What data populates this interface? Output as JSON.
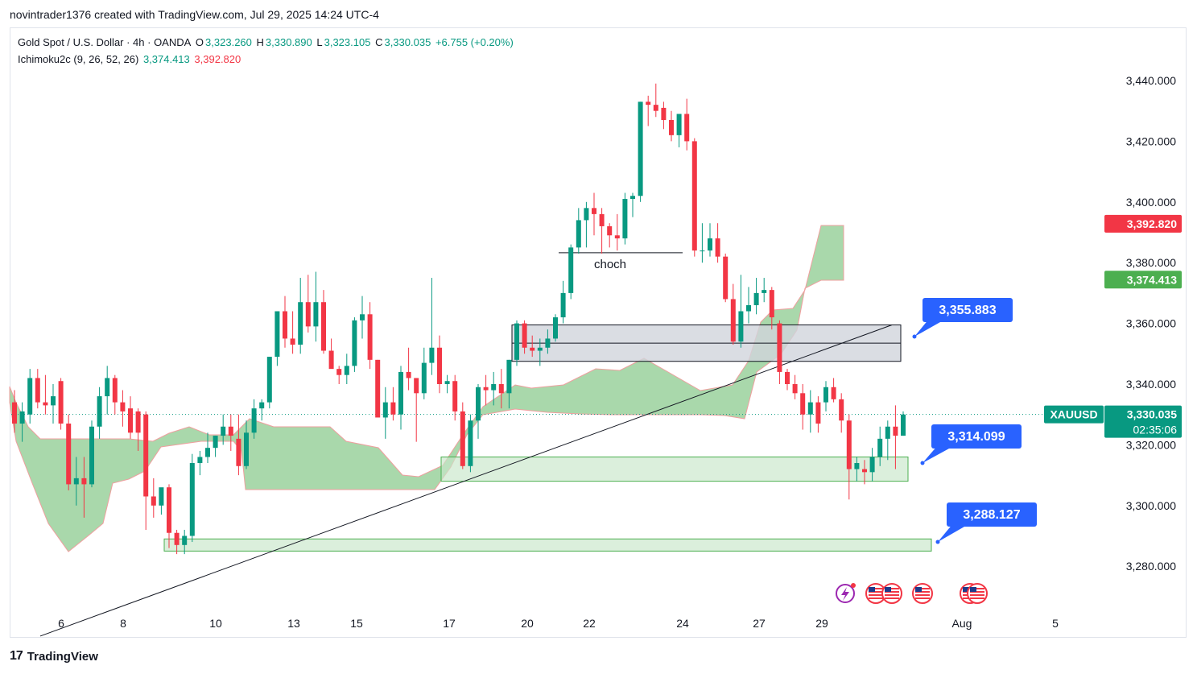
{
  "header": {
    "author_line": "novintrader1376 created with TradingView.com, Jul 29, 2025 14:24 UTC-4"
  },
  "legend": {
    "symbol_desc": "Gold Spot / U.S. Dollar · 4h · OANDA",
    "o_label": "O",
    "o_value": "3,323.260",
    "h_label": "H",
    "h_value": "3,330.890",
    "l_label": "L",
    "l_value": "3,323.105",
    "c_label": "C",
    "c_value": "3,330.035",
    "change": "+6.755 (+0.20%)",
    "indicator_name": "Ichimoku2c (9, 26, 52, 26)",
    "indicator_v1": "3,374.413",
    "indicator_v2": "3,392.820"
  },
  "footer": {
    "brand": "TradingView",
    "logo_glyph": "17"
  },
  "colors": {
    "up": "#089981",
    "down": "#f23645",
    "cloud_fill": "#a5d6a7",
    "cloud_edge": "#ef9a9a",
    "zone_green": "#c8e6c9",
    "zone_gray": "#d1d4dc",
    "callout": "#2962ff",
    "price_tag": "#089981"
  },
  "chart_data": {
    "type": "candlestick",
    "title": "Gold Spot / U.S. Dollar · 4h · OANDA",
    "ylim": [
      3270,
      3450
    ],
    "y_ticks": [
      "3,440.000",
      "3,420.000",
      "3,400.000",
      "3,380.000",
      "3,360.000",
      "3,340.000",
      "3,320.000",
      "3,300.000",
      "3,280.000"
    ],
    "y_tick_values": [
      3440,
      3420,
      3400,
      3380,
      3360,
      3340,
      3320,
      3300,
      3280
    ],
    "x_labels": [
      "6",
      "8",
      "10",
      "13",
      "15",
      "17",
      "20",
      "22",
      "24",
      "27",
      "29",
      "Aug",
      "5"
    ],
    "price_tags": {
      "symbol": "XAUUSD",
      "last": "3,330.035",
      "last_value": 3330.035,
      "countdown": "02:35:06",
      "span_b": "3,392.820",
      "span_b_value": 3392.82,
      "span_a": "3,374.413",
      "span_a_value": 3374.413
    },
    "callouts": [
      {
        "label": "3,355.883",
        "value": 3355.883
      },
      {
        "label": "3,314.099",
        "value": 3314.099
      },
      {
        "label": "3,288.127",
        "value": 3288.127
      }
    ],
    "annotations": [
      {
        "text": "choch",
        "value": 3383
      }
    ],
    "zones": [
      {
        "kind": "supply",
        "top": 3359.5,
        "bottom": 3347.5,
        "mid": 3353.5
      },
      {
        "kind": "demand",
        "top": 3316,
        "bottom": 3308
      },
      {
        "kind": "demand",
        "top": 3289,
        "bottom": 3285
      }
    ],
    "trendline": {
      "from": 3257,
      "to": 3359.5
    },
    "candles": [
      {
        "o": 3334,
        "h": 3338,
        "l": 3324,
        "c": 3327
      },
      {
        "o": 3327,
        "h": 3334,
        "l": 3321,
        "c": 3331
      },
      {
        "o": 3330,
        "h": 3345,
        "l": 3327,
        "c": 3342
      },
      {
        "o": 3342,
        "h": 3345,
        "l": 3332,
        "c": 3334
      },
      {
        "o": 3334,
        "h": 3343,
        "l": 3330,
        "c": 3333
      },
      {
        "o": 3333,
        "h": 3340,
        "l": 3327,
        "c": 3336
      },
      {
        "o": 3341,
        "h": 3342,
        "l": 3325,
        "c": 3327
      },
      {
        "o": 3327,
        "h": 3330,
        "l": 3305,
        "c": 3307
      },
      {
        "o": 3307,
        "h": 3316,
        "l": 3300,
        "c": 3309
      },
      {
        "o": 3309,
        "h": 3316,
        "l": 3296,
        "c": 3307
      },
      {
        "o": 3307,
        "h": 3328,
        "l": 3306,
        "c": 3326
      },
      {
        "o": 3326,
        "h": 3339,
        "l": 3322,
        "c": 3336
      },
      {
        "o": 3336,
        "h": 3346,
        "l": 3330,
        "c": 3342
      },
      {
        "o": 3342,
        "h": 3343,
        "l": 3330,
        "c": 3334
      },
      {
        "o": 3334,
        "h": 3338,
        "l": 3326,
        "c": 3331
      },
      {
        "o": 3332,
        "h": 3336,
        "l": 3322,
        "c": 3324
      },
      {
        "o": 3331,
        "h": 3332,
        "l": 3318,
        "c": 3324
      },
      {
        "o": 3330,
        "h": 3331,
        "l": 3292,
        "c": 3303
      },
      {
        "o": 3303,
        "h": 3309,
        "l": 3296,
        "c": 3300
      },
      {
        "o": 3300,
        "h": 3305,
        "l": 3297,
        "c": 3306
      },
      {
        "o": 3306,
        "h": 3307,
        "l": 3286,
        "c": 3291
      },
      {
        "o": 3291,
        "h": 3292,
        "l": 3284,
        "c": 3287
      },
      {
        "o": 3287,
        "h": 3292,
        "l": 3284,
        "c": 3290
      },
      {
        "o": 3290,
        "h": 3317,
        "l": 3288,
        "c": 3314
      },
      {
        "o": 3314,
        "h": 3318,
        "l": 3310,
        "c": 3316
      },
      {
        "o": 3316,
        "h": 3324,
        "l": 3314,
        "c": 3319
      },
      {
        "o": 3319,
        "h": 3323,
        "l": 3316,
        "c": 3323
      },
      {
        "o": 3323,
        "h": 3330,
        "l": 3320,
        "c": 3326
      },
      {
        "o": 3326,
        "h": 3330,
        "l": 3318,
        "c": 3323
      },
      {
        "o": 3322,
        "h": 3330,
        "l": 3310,
        "c": 3313
      },
      {
        "o": 3313,
        "h": 3328,
        "l": 3312,
        "c": 3324
      },
      {
        "o": 3324,
        "h": 3335,
        "l": 3322,
        "c": 3332
      },
      {
        "o": 3332,
        "h": 3335,
        "l": 3328,
        "c": 3334
      },
      {
        "o": 3334,
        "h": 3349,
        "l": 3332,
        "c": 3349
      },
      {
        "o": 3349,
        "h": 3364,
        "l": 3346,
        "c": 3364
      },
      {
        "o": 3364,
        "h": 3369,
        "l": 3352,
        "c": 3355
      },
      {
        "o": 3355,
        "h": 3364,
        "l": 3350,
        "c": 3353
      },
      {
        "o": 3353,
        "h": 3375,
        "l": 3350,
        "c": 3367
      },
      {
        "o": 3367,
        "h": 3376,
        "l": 3357,
        "c": 3359
      },
      {
        "o": 3359,
        "h": 3377,
        "l": 3354,
        "c": 3367
      },
      {
        "o": 3367,
        "h": 3371,
        "l": 3350,
        "c": 3351
      },
      {
        "o": 3351,
        "h": 3355,
        "l": 3346,
        "c": 3345
      },
      {
        "o": 3345,
        "h": 3346,
        "l": 3340,
        "c": 3343
      },
      {
        "o": 3343,
        "h": 3350,
        "l": 3340,
        "c": 3346
      },
      {
        "o": 3346,
        "h": 3362,
        "l": 3344,
        "c": 3361
      },
      {
        "o": 3361,
        "h": 3369,
        "l": 3355,
        "c": 3363
      },
      {
        "o": 3363,
        "h": 3367,
        "l": 3345,
        "c": 3348
      },
      {
        "o": 3348,
        "h": 3348,
        "l": 3330,
        "c": 3329
      },
      {
        "o": 3329,
        "h": 3339,
        "l": 3322,
        "c": 3334
      },
      {
        "o": 3334,
        "h": 3339,
        "l": 3328,
        "c": 3330
      },
      {
        "o": 3330,
        "h": 3346,
        "l": 3325,
        "c": 3344
      },
      {
        "o": 3344,
        "h": 3352,
        "l": 3338,
        "c": 3342
      },
      {
        "o": 3342,
        "h": 3342,
        "l": 3321,
        "c": 3337
      },
      {
        "o": 3337,
        "h": 3352,
        "l": 3335,
        "c": 3347
      },
      {
        "o": 3347,
        "h": 3375,
        "l": 3343,
        "c": 3352
      },
      {
        "o": 3352,
        "h": 3356,
        "l": 3337,
        "c": 3340
      },
      {
        "o": 3340,
        "h": 3343,
        "l": 3337,
        "c": 3341
      },
      {
        "o": 3341,
        "h": 3343,
        "l": 3328,
        "c": 3331
      },
      {
        "o": 3331,
        "h": 3334,
        "l": 3312,
        "c": 3313
      },
      {
        "o": 3313,
        "h": 3330,
        "l": 3311,
        "c": 3328
      },
      {
        "o": 3328,
        "h": 3340,
        "l": 3322,
        "c": 3339
      },
      {
        "o": 3339,
        "h": 3343,
        "l": 3333,
        "c": 3338
      },
      {
        "o": 3338,
        "h": 3344,
        "l": 3333,
        "c": 3340
      },
      {
        "o": 3340,
        "h": 3345,
        "l": 3332,
        "c": 3337
      },
      {
        "o": 3337,
        "h": 3348,
        "l": 3332,
        "c": 3348
      },
      {
        "o": 3348,
        "h": 3361,
        "l": 3346,
        "c": 3360
      },
      {
        "o": 3360,
        "h": 3361,
        "l": 3350,
        "c": 3352
      },
      {
        "o": 3352,
        "h": 3356,
        "l": 3349,
        "c": 3351
      },
      {
        "o": 3351,
        "h": 3355,
        "l": 3346,
        "c": 3352
      },
      {
        "o": 3352,
        "h": 3358,
        "l": 3350,
        "c": 3355
      },
      {
        "o": 3355,
        "h": 3363,
        "l": 3354,
        "c": 3362
      },
      {
        "o": 3362,
        "h": 3374,
        "l": 3360,
        "c": 3370
      },
      {
        "o": 3370,
        "h": 3386,
        "l": 3368,
        "c": 3385
      },
      {
        "o": 3385,
        "h": 3398,
        "l": 3383,
        "c": 3394
      },
      {
        "o": 3394,
        "h": 3400,
        "l": 3385,
        "c": 3398
      },
      {
        "o": 3398,
        "h": 3403,
        "l": 3389,
        "c": 3396
      },
      {
        "o": 3396,
        "h": 3398,
        "l": 3383,
        "c": 3392
      },
      {
        "o": 3392,
        "h": 3393,
        "l": 3385,
        "c": 3389
      },
      {
        "o": 3389,
        "h": 3396,
        "l": 3384,
        "c": 3388
      },
      {
        "o": 3388,
        "h": 3403,
        "l": 3386,
        "c": 3401
      },
      {
        "o": 3401,
        "h": 3403,
        "l": 3395,
        "c": 3402
      },
      {
        "o": 3402,
        "h": 3433,
        "l": 3400,
        "c": 3433
      },
      {
        "o": 3433,
        "h": 3435,
        "l": 3425,
        "c": 3432
      },
      {
        "o": 3432,
        "h": 3439,
        "l": 3428,
        "c": 3430
      },
      {
        "o": 3431,
        "h": 3433,
        "l": 3424,
        "c": 3427
      },
      {
        "o": 3427,
        "h": 3430,
        "l": 3420,
        "c": 3422
      },
      {
        "o": 3422,
        "h": 3429,
        "l": 3418,
        "c": 3429
      },
      {
        "o": 3429,
        "h": 3434,
        "l": 3417,
        "c": 3420
      },
      {
        "o": 3420,
        "h": 3421,
        "l": 3382,
        "c": 3384
      },
      {
        "o": 3384,
        "h": 3393,
        "l": 3380,
        "c": 3384
      },
      {
        "o": 3384,
        "h": 3393,
        "l": 3382,
        "c": 3388
      },
      {
        "o": 3388,
        "h": 3393,
        "l": 3380,
        "c": 3382
      },
      {
        "o": 3382,
        "h": 3383,
        "l": 3367,
        "c": 3368
      },
      {
        "o": 3368,
        "h": 3373,
        "l": 3353,
        "c": 3354
      },
      {
        "o": 3354,
        "h": 3376,
        "l": 3352,
        "c": 3364
      },
      {
        "o": 3364,
        "h": 3372,
        "l": 3360,
        "c": 3366
      },
      {
        "o": 3366,
        "h": 3375,
        "l": 3363,
        "c": 3370
      },
      {
        "o": 3370,
        "h": 3375,
        "l": 3367,
        "c": 3371
      },
      {
        "o": 3371,
        "h": 3372,
        "l": 3358,
        "c": 3362
      },
      {
        "o": 3360,
        "h": 3361,
        "l": 3340,
        "c": 3344
      },
      {
        "o": 3344,
        "h": 3345,
        "l": 3338,
        "c": 3340
      },
      {
        "o": 3340,
        "h": 3343,
        "l": 3335,
        "c": 3337
      },
      {
        "o": 3337,
        "h": 3340,
        "l": 3325,
        "c": 3330
      },
      {
        "o": 3330,
        "h": 3338,
        "l": 3324,
        "c": 3334
      },
      {
        "o": 3334,
        "h": 3336,
        "l": 3324,
        "c": 3327
      },
      {
        "o": 3334,
        "h": 3341,
        "l": 3331,
        "c": 3339
      },
      {
        "o": 3339,
        "h": 3342,
        "l": 3334,
        "c": 3335
      },
      {
        "o": 3335,
        "h": 3337,
        "l": 3324,
        "c": 3328
      },
      {
        "o": 3328,
        "h": 3330,
        "l": 3302,
        "c": 3312
      },
      {
        "o": 3312,
        "h": 3316,
        "l": 3308,
        "c": 3314
      },
      {
        "o": 3312,
        "h": 3315,
        "l": 3307,
        "c": 3311
      },
      {
        "o": 3311,
        "h": 3319,
        "l": 3308,
        "c": 3316
      },
      {
        "o": 3316,
        "h": 3326,
        "l": 3313,
        "c": 3322
      },
      {
        "o": 3322,
        "h": 3328,
        "l": 3315,
        "c": 3326
      },
      {
        "o": 3326,
        "h": 3333,
        "l": 3312,
        "c": 3323
      },
      {
        "o": 3323,
        "h": 3331,
        "l": 3323,
        "c": 3330
      }
    ]
  }
}
